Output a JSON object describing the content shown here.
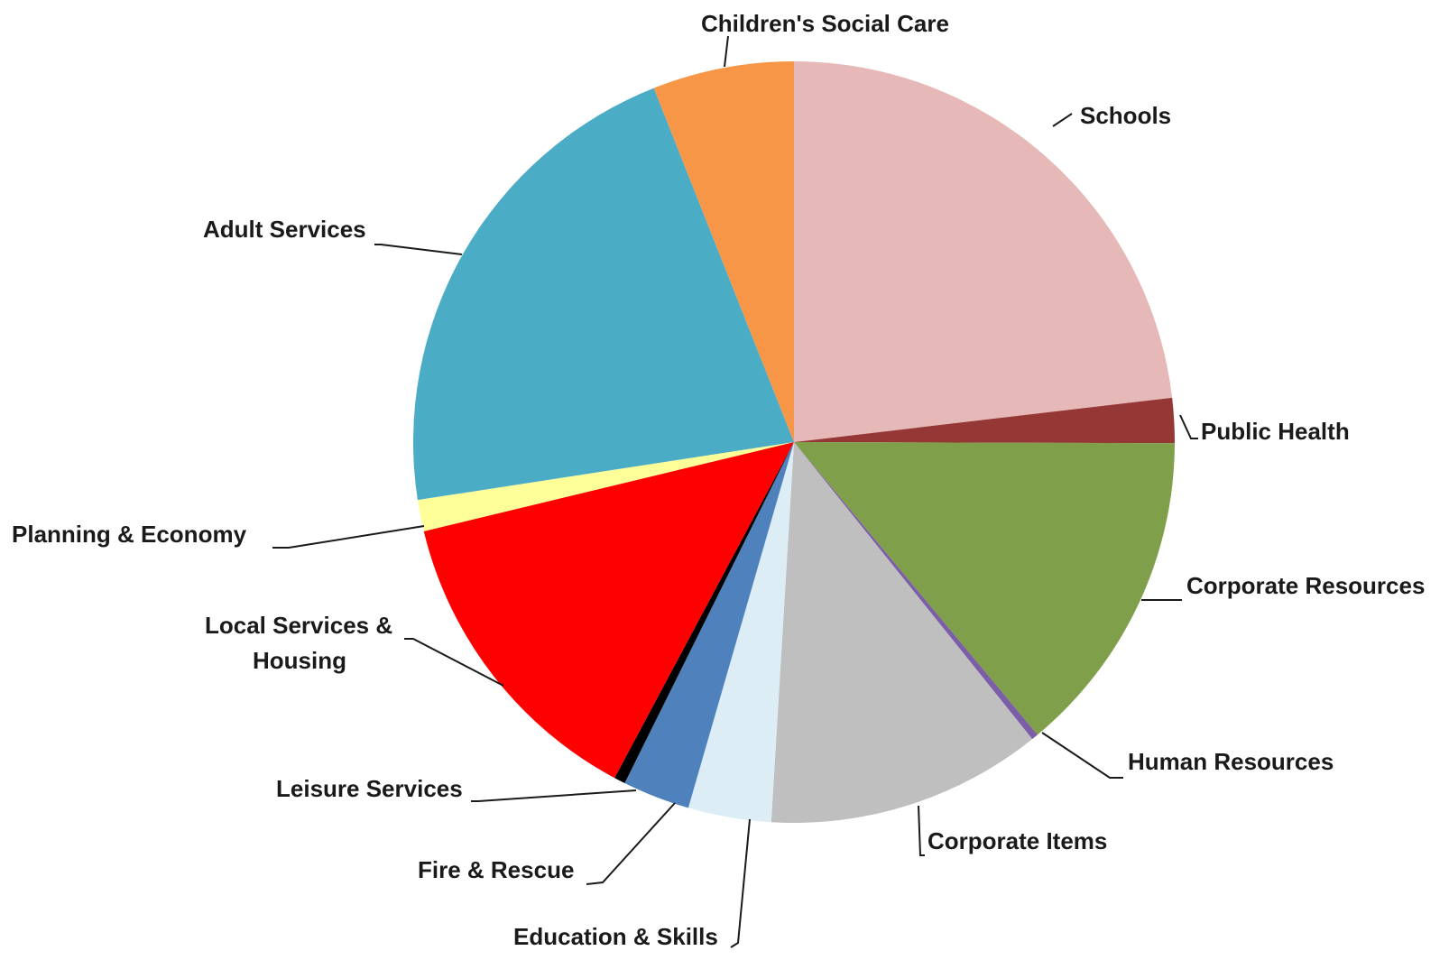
{
  "chart_data": {
    "type": "pie",
    "title": "",
    "start_angle_deg": 0,
    "direction": "clockwise",
    "slices": [
      {
        "label": "Schools",
        "value": 24.3,
        "color": "#E6B8B7"
      },
      {
        "label": "Public Health",
        "value": 2.0,
        "color": "#953735"
      },
      {
        "label": "Corporate Resources",
        "value": 14.6,
        "color": "#7F9F4A"
      },
      {
        "label": "Human Resources",
        "value": 0.3,
        "color": "#7B5EA7"
      },
      {
        "label": "Corporate Items",
        "value": 12.3,
        "color": "#BFBFBF"
      },
      {
        "label": "Education & Skills",
        "value": 3.7,
        "color": "#DCEDF5"
      },
      {
        "label": "Fire & Rescue",
        "value": 3.0,
        "color": "#4F81BD"
      },
      {
        "label": "Leisure Services",
        "value": 0.5,
        "color": "#000000"
      },
      {
        "label": "Local Services & Housing",
        "value": 14.1,
        "color": "#FF0000"
      },
      {
        "label": "Planning & Economy",
        "value": 1.4,
        "color": "#FFFF99"
      },
      {
        "label": "Adult Services",
        "value": 22.5,
        "color": "#4BACC6"
      },
      {
        "label": "Children's Social Care",
        "value": 6.3,
        "color": "#F79646"
      }
    ]
  }
}
